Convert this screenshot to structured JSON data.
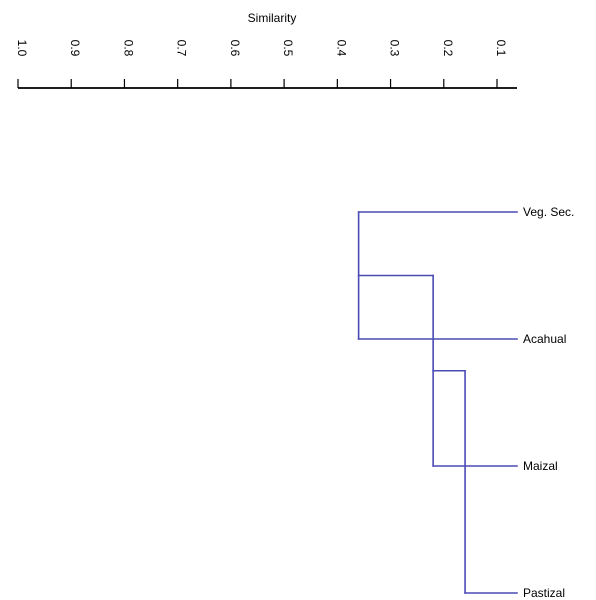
{
  "chart_data": {
    "type": "dendrogram",
    "orientation": "horizontal",
    "xlabel": "Similarity",
    "axis_position": "top",
    "tick_values": [
      0.1,
      0.2,
      0.3,
      0.4,
      0.5,
      0.6,
      0.7,
      0.8,
      0.9,
      1.0
    ],
    "tick_labels": [
      "0.1",
      "0.2",
      "0.3",
      "0.4",
      "0.5",
      "0.6",
      "0.7",
      "0.8",
      "0.9",
      "1.0"
    ],
    "x_range": [
      0.1,
      1.0
    ],
    "leaves": [
      "Veg. Sec.",
      "Acahual",
      "Maizal",
      "Pastizal"
    ],
    "merges": [
      {
        "left": "Veg. Sec.",
        "right": "Acahual",
        "similarity": 0.36
      },
      {
        "left": "Veg. Sec. + Acahual",
        "right": "Maizal",
        "similarity": 0.22
      },
      {
        "left": "Veg. Sec. + Acahual + Maizal",
        "right": "Pastizal",
        "similarity": 0.16
      }
    ],
    "link_color": "#4b4bb5",
    "axis_color": "#000000",
    "grid": false
  }
}
